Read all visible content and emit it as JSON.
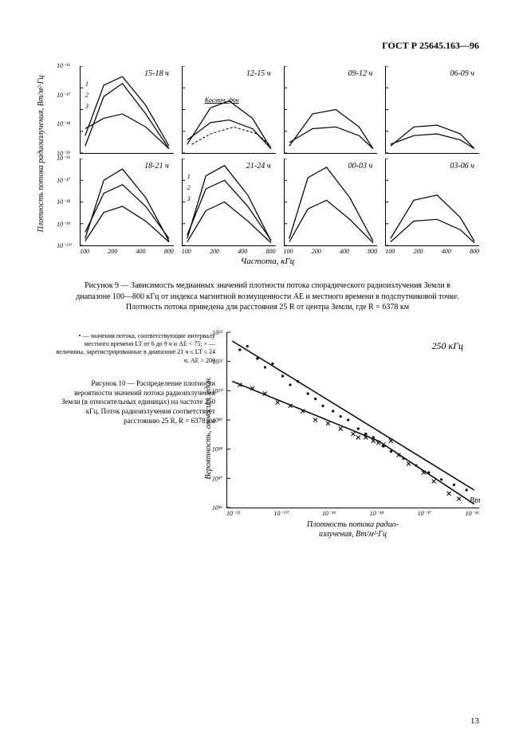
{
  "doc_code": "ГОСТ Р 25645.163—96",
  "page_number": "13",
  "fig9": {
    "y_axis_label": "Плотность потока радиоизлучения, Вт/м²·Гц",
    "x_axis_label": "Частота, кГц",
    "y_ticks_top": [
      "10⁻¹⁶",
      "10⁻¹⁷",
      "10⁻¹⁸",
      "10⁻¹⁹"
    ],
    "y_ticks_bot": [
      "10⁻¹⁶",
      "10⁻¹⁷",
      "10⁻¹⁸",
      "10⁻¹⁹",
      "10⁻²⁰"
    ],
    "x_ticks": [
      "100",
      "200",
      "400",
      "800"
    ],
    "cosmic_bg_label": "Космич. фон",
    "panels": [
      {
        "title": "15-18 ч",
        "curve_labels": [
          "1",
          "2",
          "3"
        ],
        "curves": [
          [
            [
              0.05,
              0.92
            ],
            [
              0.25,
              0.35
            ],
            [
              0.45,
              0.2
            ],
            [
              0.7,
              0.55
            ],
            [
              0.95,
              0.95
            ]
          ],
          [
            [
              0.05,
              0.8
            ],
            [
              0.25,
              0.22
            ],
            [
              0.45,
              0.12
            ],
            [
              0.7,
              0.45
            ],
            [
              0.95,
              0.92
            ]
          ],
          [
            [
              0.05,
              0.72
            ],
            [
              0.25,
              0.6
            ],
            [
              0.45,
              0.55
            ],
            [
              0.7,
              0.7
            ],
            [
              0.95,
              0.95
            ]
          ]
        ]
      },
      {
        "title": "12-15 ч",
        "curve_labels": [],
        "curves": [
          [
            [
              0.05,
              0.9
            ],
            [
              0.3,
              0.48
            ],
            [
              0.5,
              0.4
            ],
            [
              0.75,
              0.6
            ],
            [
              0.95,
              0.95
            ]
          ],
          [
            [
              0.05,
              0.85
            ],
            [
              0.3,
              0.65
            ],
            [
              0.5,
              0.62
            ],
            [
              0.75,
              0.72
            ],
            [
              0.95,
              0.95
            ]
          ]
        ],
        "cosmic": [
          [
            0.1,
            0.9
          ],
          [
            0.3,
            0.78
          ],
          [
            0.55,
            0.7
          ],
          [
            0.8,
            0.78
          ],
          [
            0.95,
            0.92
          ]
        ]
      },
      {
        "title": "09-12 ч",
        "curve_labels": [],
        "curves": [
          [
            [
              0.05,
              0.92
            ],
            [
              0.3,
              0.55
            ],
            [
              0.55,
              0.5
            ],
            [
              0.8,
              0.7
            ],
            [
              0.95,
              0.95
            ]
          ],
          [
            [
              0.05,
              0.88
            ],
            [
              0.3,
              0.72
            ],
            [
              0.55,
              0.7
            ],
            [
              0.8,
              0.8
            ],
            [
              0.95,
              0.95
            ]
          ]
        ]
      },
      {
        "title": "06-09 ч",
        "curve_labels": [],
        "curves": [
          [
            [
              0.05,
              0.92
            ],
            [
              0.3,
              0.7
            ],
            [
              0.55,
              0.68
            ],
            [
              0.8,
              0.78
            ],
            [
              0.95,
              0.95
            ]
          ],
          [
            [
              0.05,
              0.9
            ],
            [
              0.3,
              0.8
            ],
            [
              0.55,
              0.78
            ],
            [
              0.8,
              0.85
            ],
            [
              0.95,
              0.95
            ]
          ]
        ]
      },
      {
        "title": "18-21 ч",
        "curve_labels": [],
        "curves": [
          [
            [
              0.05,
              0.92
            ],
            [
              0.25,
              0.25
            ],
            [
              0.45,
              0.12
            ],
            [
              0.7,
              0.45
            ],
            [
              0.95,
              0.95
            ]
          ],
          [
            [
              0.05,
              0.85
            ],
            [
              0.25,
              0.4
            ],
            [
              0.45,
              0.3
            ],
            [
              0.7,
              0.55
            ],
            [
              0.95,
              0.92
            ]
          ],
          [
            [
              0.05,
              0.95
            ],
            [
              0.25,
              0.62
            ],
            [
              0.45,
              0.55
            ],
            [
              0.7,
              0.72
            ],
            [
              0.95,
              0.96
            ]
          ]
        ]
      },
      {
        "title": "21-24 ч",
        "curve_labels": [
          "1",
          "2",
          "3"
        ],
        "curves": [
          [
            [
              0.05,
              0.92
            ],
            [
              0.25,
              0.2
            ],
            [
              0.45,
              0.08
            ],
            [
              0.7,
              0.42
            ],
            [
              0.95,
              0.95
            ]
          ],
          [
            [
              0.05,
              0.88
            ],
            [
              0.25,
              0.35
            ],
            [
              0.45,
              0.25
            ],
            [
              0.7,
              0.55
            ],
            [
              0.95,
              0.94
            ]
          ],
          [
            [
              0.05,
              0.96
            ],
            [
              0.25,
              0.6
            ],
            [
              0.45,
              0.5
            ],
            [
              0.7,
              0.72
            ],
            [
              0.95,
              0.97
            ]
          ]
        ]
      },
      {
        "title": "00-03 ч",
        "curve_labels": [],
        "curves": [
          [
            [
              0.05,
              0.92
            ],
            [
              0.25,
              0.22
            ],
            [
              0.45,
              0.1
            ],
            [
              0.7,
              0.45
            ],
            [
              0.95,
              0.95
            ]
          ],
          [
            [
              0.05,
              0.96
            ],
            [
              0.25,
              0.58
            ],
            [
              0.45,
              0.48
            ],
            [
              0.7,
              0.7
            ],
            [
              0.95,
              0.97
            ]
          ]
        ]
      },
      {
        "title": "03-06 ч",
        "curve_labels": [],
        "curves": [
          [
            [
              0.05,
              0.92
            ],
            [
              0.3,
              0.48
            ],
            [
              0.55,
              0.42
            ],
            [
              0.8,
              0.68
            ],
            [
              0.95,
              0.95
            ]
          ],
          [
            [
              0.05,
              0.96
            ],
            [
              0.3,
              0.72
            ],
            [
              0.55,
              0.7
            ],
            [
              0.8,
              0.82
            ],
            [
              0.95,
              0.97
            ]
          ]
        ]
      }
    ],
    "caption": "Рисунок 9 — Зависимость медианных значений плотности потока спорадического радиоизлучения Земли в диапазоне 100—800 кГц от индекса магнитной возмущенности AE и местного времени в подспутниковой точке. Плотность потока приведена для расстояния 25 R от центра Земли, где R = 6378 км"
  },
  "fig10": {
    "title": "250 кГц",
    "y_axis_label": "Вероятность, относит. един.",
    "x_axis_label_line1": "Плотность потока радио-",
    "x_axis_label_line2": "излучения, Вт/м²·Гц",
    "y_ticks": [
      "10²²",
      "10²¹",
      "10²⁰",
      "10¹⁹",
      "10¹⁸",
      "10¹⁷",
      "10¹⁶"
    ],
    "x_ticks": [
      "10⁻²¹",
      "10⁻²⁰",
      "10⁻¹⁹",
      "10⁻¹⁸",
      "10⁻¹⁷",
      "10⁻¹⁶"
    ],
    "x_unit": "Вт",
    "line1": [
      [
        0.02,
        0.05
      ],
      [
        0.98,
        0.9
      ]
    ],
    "line2": [
      [
        0.02,
        0.28
      ],
      [
        0.6,
        0.62
      ],
      [
        0.98,
        0.98
      ]
    ],
    "dots": [
      [
        0.05,
        0.1
      ],
      [
        0.08,
        0.08
      ],
      [
        0.12,
        0.15
      ],
      [
        0.15,
        0.2
      ],
      [
        0.18,
        0.18
      ],
      [
        0.22,
        0.25
      ],
      [
        0.25,
        0.3
      ],
      [
        0.28,
        0.28
      ],
      [
        0.32,
        0.35
      ],
      [
        0.35,
        0.38
      ],
      [
        0.38,
        0.42
      ],
      [
        0.42,
        0.45
      ],
      [
        0.45,
        0.48
      ],
      [
        0.48,
        0.5
      ],
      [
        0.52,
        0.55
      ],
      [
        0.55,
        0.58
      ],
      [
        0.58,
        0.6
      ],
      [
        0.62,
        0.65
      ],
      [
        0.65,
        0.68
      ],
      [
        0.7,
        0.72
      ],
      [
        0.75,
        0.76
      ],
      [
        0.8,
        0.8
      ],
      [
        0.85,
        0.84
      ],
      [
        0.9,
        0.87
      ],
      [
        0.95,
        0.9
      ]
    ],
    "crosses": [
      [
        0.05,
        0.3
      ],
      [
        0.1,
        0.32
      ],
      [
        0.15,
        0.35
      ],
      [
        0.2,
        0.4
      ],
      [
        0.25,
        0.42
      ],
      [
        0.3,
        0.45
      ],
      [
        0.35,
        0.5
      ],
      [
        0.4,
        0.52
      ],
      [
        0.45,
        0.55
      ],
      [
        0.5,
        0.58
      ],
      [
        0.52,
        0.6
      ],
      [
        0.55,
        0.6
      ],
      [
        0.58,
        0.62
      ],
      [
        0.6,
        0.63
      ],
      [
        0.62,
        0.64
      ],
      [
        0.65,
        0.62
      ],
      [
        0.68,
        0.7
      ],
      [
        0.72,
        0.75
      ],
      [
        0.78,
        0.8
      ],
      [
        0.82,
        0.85
      ],
      [
        0.88,
        0.92
      ],
      [
        0.92,
        0.95
      ]
    ],
    "legend": "• — значения потока, соответствующие интервалу местного времени LT от 6 до 9 ч и AE < 75; × — величины, зарегистрированные в диапазоне 21 ч ≤ LT ≤ 24 ч, AE > 200",
    "caption": "Рисунок 10 — Распределение плотности вероятности значений потока радиоизлучения Земли (в относительных единицах) на частоте 250 кГц. Поток радиоизлучения соответствует расстоянию 25 R, R = 6378 км"
  },
  "style": {
    "stroke": "#000000",
    "stroke_width": 1.2,
    "bg": "#ffffff"
  }
}
